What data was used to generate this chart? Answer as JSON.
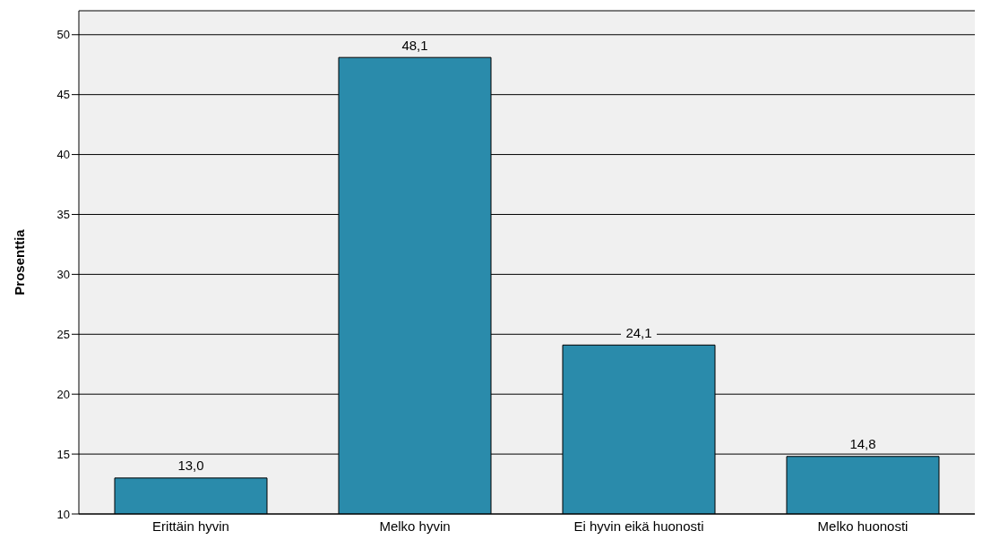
{
  "chart_data": {
    "type": "bar",
    "ylabel": "Prosenttia",
    "categories": [
      "Erittäin hyvin",
      "Melko hyvin",
      "Ei hyvin eikä huonosti",
      "Melko huonosti"
    ],
    "values": [
      13.0,
      48.1,
      24.1,
      14.8
    ],
    "value_labels": [
      "13,0",
      "48,1",
      "24,1",
      "14,8"
    ],
    "color": "#2a8bab",
    "ylim": [
      10,
      52
    ],
    "yticks": [
      10,
      15,
      20,
      25,
      30,
      35,
      40,
      45,
      50
    ],
    "grid": "y"
  }
}
